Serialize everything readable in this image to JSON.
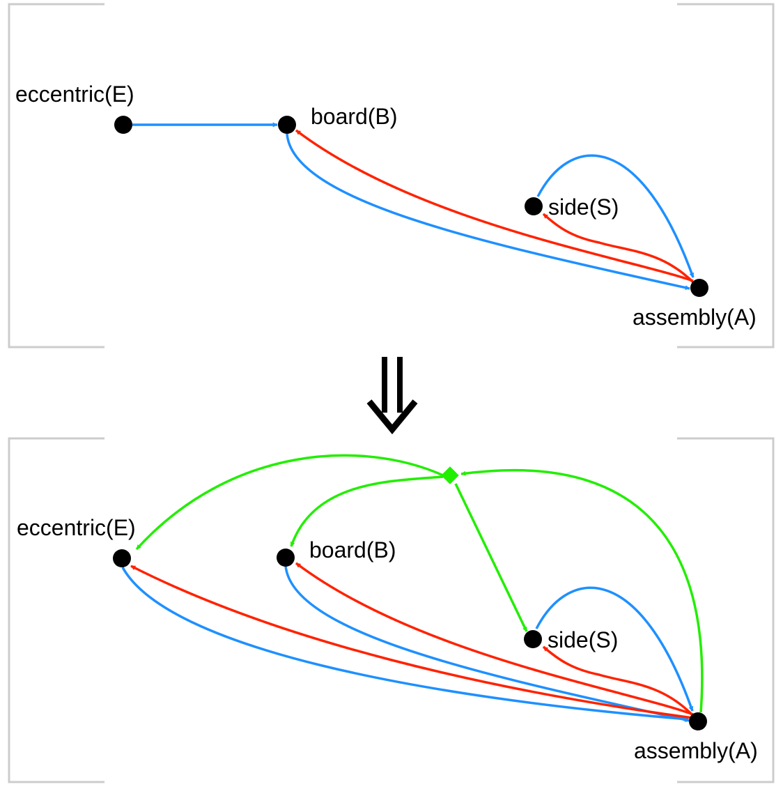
{
  "colors": {
    "blue": "#1e90ff",
    "red": "#ff2200",
    "green": "#22ee00",
    "node": "#000000",
    "frame": "#cccccc"
  },
  "top_graph": {
    "nodes": {
      "E": "eccentric(E)",
      "B": "board(B)",
      "S": "side(S)",
      "A": "assembly(A)"
    }
  },
  "bottom_graph": {
    "nodes": {
      "E": "eccentric(E)",
      "B": "board(B)",
      "S": "side(S)",
      "A": "assembly(A)"
    }
  },
  "transition_symbol": "⇓"
}
